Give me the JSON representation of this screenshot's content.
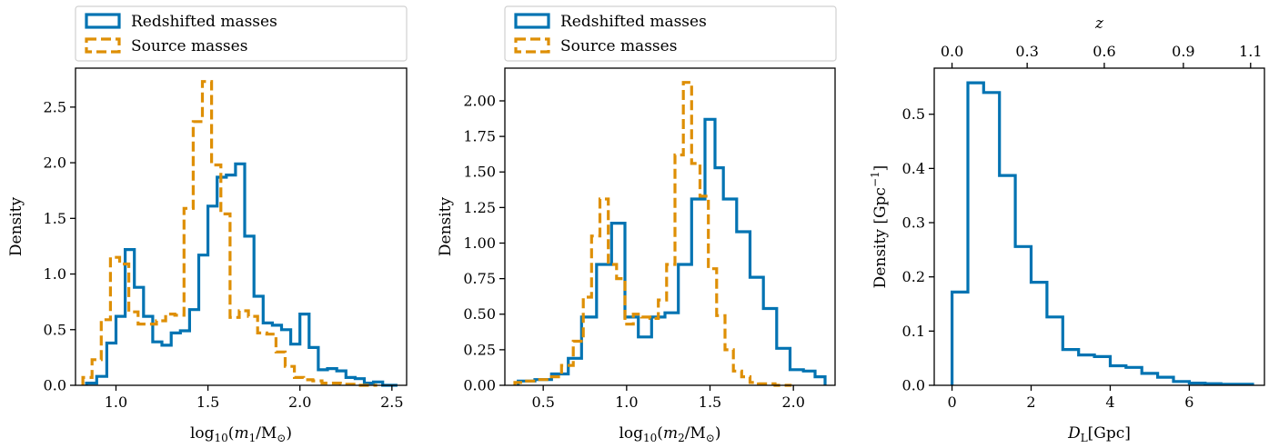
{
  "colors": {
    "redshifted": "#0173b2",
    "source": "#de8f05"
  },
  "chart_data": [
    {
      "type": "histogram",
      "xlabel_parts": [
        "log",
        "10",
        "(",
        "m",
        "1",
        "/M",
        "⊙",
        ")"
      ],
      "ylabel": "Density",
      "xlim": [
        0.78,
        2.58
      ],
      "ylim": [
        0,
        2.85
      ],
      "xticks": [
        1.0,
        1.5,
        2.0,
        2.5
      ],
      "yticks": [
        0.0,
        0.5,
        1.0,
        1.5,
        2.0,
        2.5
      ],
      "xtick_labels": [
        "1.0",
        "1.5",
        "2.0",
        "2.5"
      ],
      "ytick_labels": [
        "0.0",
        "0.5",
        "1.0",
        "1.5",
        "2.0",
        "2.5"
      ],
      "legend": {
        "location": "above",
        "entries": [
          "Redshifted masses",
          "Source masses"
        ]
      },
      "series": [
        {
          "name": "Redshifted masses",
          "style": "solid",
          "edges": [
            0.84,
            0.895,
            0.95,
            1.0,
            1.05,
            1.1,
            1.15,
            1.2,
            1.25,
            1.3,
            1.35,
            1.4,
            1.45,
            1.5,
            1.55,
            1.6,
            1.65,
            1.7,
            1.75,
            1.8,
            1.85,
            1.9,
            1.95,
            2.0,
            2.05,
            2.1,
            2.15,
            2.2,
            2.25,
            2.3,
            2.35,
            2.4,
            2.45,
            2.53
          ],
          "values": [
            0.02,
            0.08,
            0.38,
            0.62,
            1.22,
            0.88,
            0.62,
            0.39,
            0.36,
            0.47,
            0.49,
            0.68,
            1.17,
            1.61,
            1.87,
            1.89,
            1.99,
            1.34,
            0.8,
            0.56,
            0.54,
            0.5,
            0.37,
            0.64,
            0.34,
            0.14,
            0.15,
            0.13,
            0.07,
            0.06,
            0.02,
            0.03,
            0.0
          ]
        },
        {
          "name": "Source masses",
          "style": "dashed",
          "edges": [
            0.82,
            0.87,
            0.92,
            0.97,
            1.02,
            1.07,
            1.12,
            1.17,
            1.22,
            1.27,
            1.32,
            1.37,
            1.42,
            1.47,
            1.52,
            1.57,
            1.62,
            1.67,
            1.72,
            1.77,
            1.82,
            1.87,
            1.92,
            1.97,
            2.02,
            2.07,
            2.12,
            2.17,
            2.22,
            2.27,
            2.32,
            2.37,
            2.42
          ],
          "values": [
            0.07,
            0.23,
            0.59,
            1.15,
            1.09,
            0.66,
            0.55,
            0.55,
            0.58,
            0.64,
            0.63,
            1.59,
            2.37,
            2.73,
            1.98,
            1.54,
            0.61,
            0.67,
            0.62,
            0.47,
            0.46,
            0.3,
            0.17,
            0.07,
            0.05,
            0.04,
            0.02,
            0.02,
            0.01,
            0.01,
            0.0,
            0.0
          ]
        }
      ]
    },
    {
      "type": "histogram",
      "xlabel_parts": [
        "log",
        "10",
        "(",
        "m",
        "2",
        "/M",
        "⊙",
        ")"
      ],
      "ylabel": "Density",
      "xlim": [
        0.27,
        2.25
      ],
      "ylim": [
        0,
        2.23
      ],
      "xticks": [
        0.5,
        1.0,
        1.5,
        2.0
      ],
      "yticks": [
        0.0,
        0.25,
        0.5,
        0.75,
        1.0,
        1.25,
        1.5,
        1.75,
        2.0
      ],
      "xtick_labels": [
        "0.5",
        "1.0",
        "1.5",
        "2.0"
      ],
      "ytick_labels": [
        "0.00",
        "0.25",
        "0.50",
        "0.75",
        "1.00",
        "1.25",
        "1.50",
        "1.75",
        "2.00"
      ],
      "legend": {
        "location": "above",
        "entries": [
          "Redshifted masses",
          "Source masses"
        ]
      },
      "series": [
        {
          "name": "Redshifted masses",
          "style": "solid",
          "edges": [
            0.35,
            0.45,
            0.55,
            0.65,
            0.73,
            0.82,
            0.91,
            0.99,
            1.07,
            1.15,
            1.23,
            1.31,
            1.39,
            1.47,
            1.53,
            1.58,
            1.66,
            1.74,
            1.82,
            1.9,
            1.98,
            2.06,
            2.13,
            2.19
          ],
          "values": [
            0.03,
            0.04,
            0.08,
            0.19,
            0.48,
            0.85,
            1.14,
            0.48,
            0.34,
            0.48,
            0.51,
            0.85,
            1.31,
            1.87,
            1.53,
            1.31,
            1.08,
            0.76,
            0.54,
            0.26,
            0.11,
            0.1,
            0.06
          ]
        },
        {
          "name": "Source masses",
          "style": "dashed",
          "edges": [
            0.33,
            0.4,
            0.47,
            0.54,
            0.61,
            0.68,
            0.74,
            0.79,
            0.84,
            0.89,
            0.94,
            0.99,
            1.04,
            1.09,
            1.14,
            1.19,
            1.24,
            1.29,
            1.34,
            1.39,
            1.44,
            1.49,
            1.54,
            1.59,
            1.64,
            1.69,
            1.74,
            1.79,
            1.84,
            1.89,
            1.94,
            1.99
          ],
          "values": [
            0.02,
            0.03,
            0.04,
            0.06,
            0.14,
            0.31,
            0.62,
            1.05,
            1.31,
            0.85,
            0.75,
            0.43,
            0.5,
            0.48,
            0.47,
            0.6,
            0.85,
            1.62,
            2.13,
            1.56,
            1.33,
            0.82,
            0.49,
            0.25,
            0.1,
            0.06,
            0.02,
            0.01,
            0.01,
            0.0,
            0.0
          ]
        }
      ]
    },
    {
      "type": "histogram",
      "xlabel_parts": [
        "D",
        "L",
        "[Gpc]"
      ],
      "ylabel_parts": [
        "Density [Gpc",
        "−1",
        "]"
      ],
      "secondary_xlabel": "z",
      "xlim": [
        -0.45,
        7.9
      ],
      "ylim": [
        0,
        0.585
      ],
      "xticks": [
        0,
        2,
        4,
        6
      ],
      "yticks": [
        0.0,
        0.1,
        0.2,
        0.3,
        0.4,
        0.5
      ],
      "xtick_labels": [
        "0",
        "2",
        "4",
        "6"
      ],
      "ytick_labels": [
        "0.0",
        "0.1",
        "0.2",
        "0.3",
        "0.4",
        "0.5"
      ],
      "top_axis": {
        "label": "z",
        "ticks_at_DL": [
          0.0,
          1.9,
          3.85,
          5.85,
          7.55
        ],
        "tick_labels": [
          "0.0",
          "0.3",
          "0.6",
          "0.9",
          "1.1"
        ]
      },
      "series": [
        {
          "name": "",
          "style": "solid",
          "edges": [
            0.0,
            0.4,
            0.8,
            1.2,
            1.6,
            2.0,
            2.4,
            2.8,
            3.2,
            3.6,
            4.0,
            4.4,
            4.8,
            5.2,
            5.6,
            6.0,
            6.4,
            6.8,
            7.2,
            7.6
          ],
          "values": [
            0.172,
            0.558,
            0.54,
            0.387,
            0.256,
            0.19,
            0.126,
            0.066,
            0.056,
            0.053,
            0.036,
            0.033,
            0.022,
            0.015,
            0.007,
            0.004,
            0.003,
            0.002,
            0.002
          ]
        }
      ]
    }
  ]
}
